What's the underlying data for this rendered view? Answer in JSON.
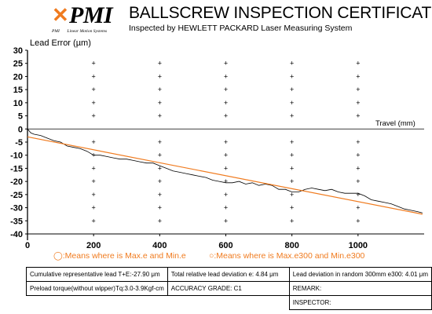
{
  "header": {
    "logo_text": "PMI",
    "logo_sub_left": "PMI",
    "logo_sub_right": "Linear Motion Systems",
    "title": "BALLSCREW INSPECTION CERTIFICATE",
    "subtitle": "Inspected by HEWLETT PACKARD Laser Measuring System",
    "brand_color": "#f07b1f"
  },
  "chart_data": {
    "type": "line",
    "ylabel": "Lead Error (µm)",
    "xlabel": "Travel (mm)",
    "xlim": [
      0,
      1200
    ],
    "ylim": [
      -40,
      30
    ],
    "x_ticks": [
      0,
      200,
      400,
      600,
      800,
      1000
    ],
    "y_ticks": [
      30,
      25,
      20,
      15,
      10,
      5,
      0,
      -5,
      -10,
      -15,
      -20,
      -25,
      -30,
      -35,
      -40
    ],
    "grid": "plus markers",
    "series": [
      {
        "color": "#000000",
        "x": [
          0,
          10,
          20,
          40,
          60,
          80,
          100,
          120,
          140,
          160,
          180,
          200,
          220,
          240,
          260,
          280,
          300,
          320,
          340,
          360,
          380,
          400,
          420,
          440,
          460,
          480,
          500,
          520,
          540,
          560,
          580,
          600,
          620,
          640,
          660,
          680,
          700,
          720,
          740,
          760,
          780,
          800,
          820,
          840,
          860,
          880,
          900,
          920,
          940,
          960,
          980,
          1000,
          1020,
          1040,
          1060,
          1080,
          1100,
          1120,
          1140,
          1160,
          1180,
          1195
        ],
        "y": [
          0,
          -1.5,
          -2,
          -2.5,
          -3.5,
          -4.5,
          -5,
          -6.5,
          -7,
          -7.5,
          -8.5,
          -10,
          -10,
          -10.5,
          -11,
          -11.5,
          -11.5,
          -12,
          -12.5,
          -13,
          -13,
          -14,
          -15,
          -16,
          -16.5,
          -17,
          -17.5,
          -18,
          -18.5,
          -19.5,
          -20,
          -20.5,
          -20.5,
          -20,
          -21,
          -20.5,
          -21.5,
          -21,
          -21.5,
          -23,
          -23,
          -24,
          -24,
          -23,
          -22.5,
          -23,
          -23.5,
          -23,
          -24,
          -24.5,
          -24.5,
          -24.5,
          -25.5,
          -27,
          -27.5,
          -28,
          -28.5,
          -29.5,
          -30.5,
          -31,
          -31.5,
          -32
        ]
      },
      {
        "color": "#f07b1f",
        "x": [
          0,
          1195
        ],
        "y": [
          -3,
          -32.5
        ]
      }
    ]
  },
  "legend": {
    "text_a": "◯:Means where is Max.e and Min.e",
    "text_b": "○:Means where is Max.e300 and Min.e300"
  },
  "info_table": {
    "cumulative": "Cumulative representative lead  T+E:-27.90 μm",
    "total_deviation": "Total relative lead deviation e: 4.84 μm",
    "random_deviation": "Lead deviation in random 300mm e300: 4.01 μm",
    "preload": "Preload torque(without wipper)Tq:3.0-3.9Kgf-cm",
    "accuracy": "ACCURACY GRADE:  C1",
    "remark": "REMARK:",
    "inspector": "INSPECTOR:"
  }
}
